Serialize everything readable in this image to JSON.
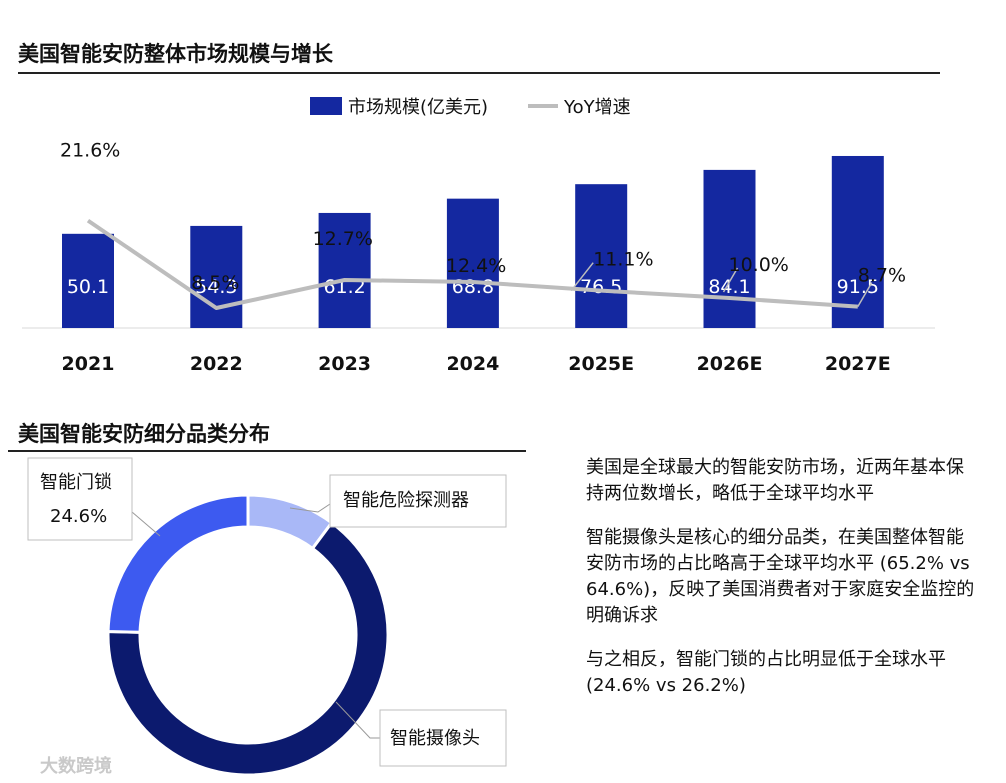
{
  "section1": {
    "title": "美国智能安防整体市场规模与增长"
  },
  "section2": {
    "title": "美国智能安防细分品类分布"
  },
  "chart_data": [
    {
      "type": "bar",
      "title": "美国智能安防整体市场规模与增长",
      "categories": [
        "2021",
        "2022",
        "2023",
        "2024",
        "2025E",
        "2026E",
        "2027E"
      ],
      "series": [
        {
          "name": "市场规模(亿美元)",
          "kind": "bar",
          "values": [
            50.1,
            54.3,
            61.2,
            68.8,
            76.5,
            84.1,
            91.5
          ],
          "color": "#1428a0"
        },
        {
          "name": "YoY增速",
          "kind": "line",
          "values": [
            21.6,
            8.5,
            12.7,
            12.4,
            11.1,
            10.0,
            8.7
          ],
          "labels": [
            "21.6%",
            "8.5%",
            "12.7%",
            "12.4%",
            "11.1%",
            "10.0%",
            "8.7%"
          ],
          "color": "#bdbdbd"
        }
      ],
      "ylim": [
        0,
        100
      ],
      "y2lim": [
        0,
        25
      ],
      "legend": "top-center"
    },
    {
      "type": "pie",
      "title": "美国智能安防细分品类分布",
      "slices": [
        {
          "label": "智能危险探测器",
          "value": 10.2,
          "color": "#a9b8f7"
        },
        {
          "label": "智能摄像头",
          "value": 65.2,
          "color": "#0c1a6e"
        },
        {
          "label": "智能门锁",
          "value": 24.6,
          "value_label": "24.6%",
          "color": "#3d5af0"
        }
      ]
    }
  ],
  "bullets": [
    "美国是全球最大的智能安防市场，近两年基本保持两位数增长，略低于全球平均水平",
    "智能摄像头是核心的细分品类，在美国整体智能安防市场的占比略高于全球平均水平 (65.2% vs 64.6%)，反映了美国消费者对于家庭安全监控的明确诉求",
    "与之相反，智能门锁的占比明显低于全球水平 (24.6% vs 26.2%)"
  ],
  "watermark": {
    "brand": "大数跨境"
  }
}
